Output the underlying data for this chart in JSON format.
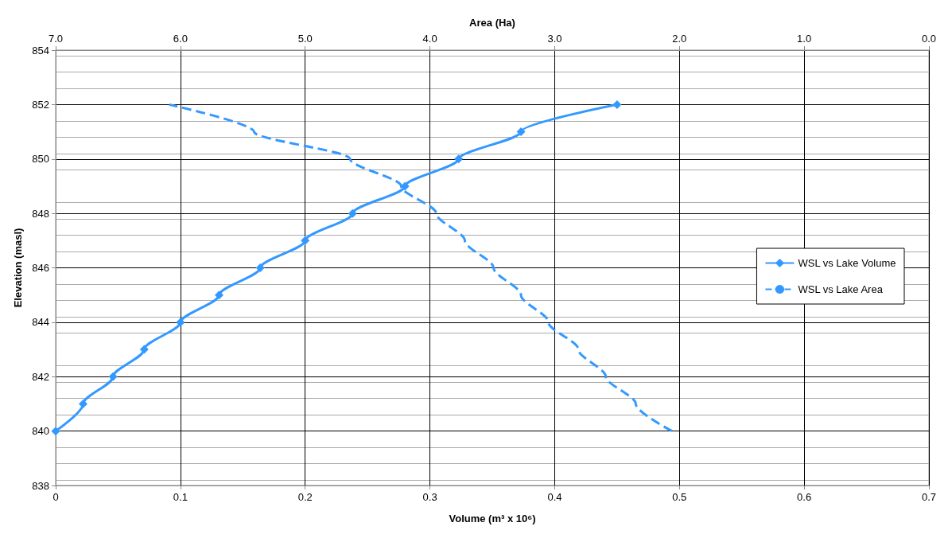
{
  "chart_data": {
    "type": "line",
    "xlabel": "Volume (m³ x 10⁶)",
    "x2label": "Area (Ha)",
    "ylabel": "Elevation (masl)",
    "xlim": [
      0,
      0.7
    ],
    "xticks": [
      0,
      0.1,
      0.2,
      0.3,
      0.4,
      0.5,
      0.6,
      0.7
    ],
    "x2lim": [
      7,
      0
    ],
    "x2ticks": [
      {
        "value": 7,
        "label": "7.0"
      },
      {
        "value": 6,
        "label": "6.0"
      },
      {
        "value": 5,
        "label": "5.0"
      },
      {
        "value": 4,
        "label": "4.0"
      },
      {
        "value": 3,
        "label": "3.0"
      },
      {
        "value": 2,
        "label": "2.0"
      },
      {
        "value": 1,
        "label": "1.0"
      },
      {
        "value": 0,
        "label": "0.0"
      }
    ],
    "ylim": [
      838,
      854
    ],
    "yticks": [
      838,
      840,
      842,
      844,
      846,
      848,
      850,
      852,
      854
    ],
    "grid": true,
    "legend": "right",
    "series": [
      {
        "name": "WSL vs Lake Volume",
        "color": "#3399ff",
        "marker": "diamond",
        "line_style": "solid",
        "x": [
          0,
          0.022,
          0.046,
          0.071,
          0.1,
          0.131,
          0.164,
          0.2,
          0.238,
          0.28,
          0.323,
          0.373,
          0.45
        ],
        "values": [
          840,
          841,
          842,
          843,
          844,
          845,
          846,
          847,
          848,
          849,
          850,
          851,
          852
        ]
      },
      {
        "name": "WSL vs Lake Area",
        "color": "#3399ff",
        "marker": "none",
        "line_style": "dashed",
        "axis": "x2",
        "x": [
          2.06,
          2.35,
          2.59,
          2.81,
          3.05,
          3.27,
          3.49,
          3.72,
          3.95,
          4.23,
          4.64,
          5.41,
          6.09
        ],
        "values": [
          840,
          841,
          842,
          843,
          844,
          845,
          846,
          847,
          848,
          849,
          850,
          851,
          852
        ]
      }
    ]
  }
}
